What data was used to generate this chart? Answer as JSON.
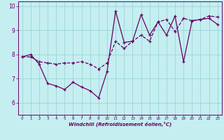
{
  "xlabel": "Windchill (Refroidissement éolien,°C)",
  "ylabel": "",
  "bg_color": "#c5eef0",
  "grid_color": "#9dd4d8",
  "line_color": "#660066",
  "xlim": [
    -0.5,
    23.5
  ],
  "ylim": [
    5.5,
    10.2
  ],
  "yticks": [
    6,
    7,
    8,
    9,
    10
  ],
  "xticks": [
    0,
    1,
    2,
    3,
    4,
    5,
    6,
    7,
    8,
    9,
    10,
    11,
    12,
    13,
    14,
    15,
    16,
    17,
    18,
    19,
    20,
    21,
    22,
    23
  ],
  "line1_x": [
    0,
    1,
    2,
    3,
    4,
    5,
    6,
    7,
    8,
    9,
    10,
    11,
    12,
    13,
    14,
    15,
    16,
    17,
    18,
    19,
    20,
    21,
    22,
    23
  ],
  "line1_y": [
    7.9,
    8.0,
    7.6,
    6.8,
    6.7,
    6.55,
    6.85,
    6.65,
    6.5,
    6.2,
    7.3,
    9.8,
    8.5,
    8.55,
    9.65,
    8.8,
    9.35,
    8.8,
    9.6,
    7.7,
    9.4,
    9.45,
    9.5,
    9.25
  ],
  "line2_x": [
    0,
    1,
    2,
    3,
    4,
    5,
    6,
    7,
    8,
    9,
    10,
    11,
    12,
    13,
    14,
    15,
    16,
    17,
    18,
    19,
    20,
    21,
    22,
    23
  ],
  "line2_y": [
    7.9,
    7.9,
    7.7,
    7.65,
    7.6,
    7.65,
    7.65,
    7.7,
    7.6,
    7.4,
    7.65,
    8.55,
    8.25,
    8.55,
    8.8,
    8.55,
    9.35,
    9.45,
    8.95,
    9.5,
    9.4,
    9.45,
    9.6,
    9.55
  ],
  "marker": "+"
}
